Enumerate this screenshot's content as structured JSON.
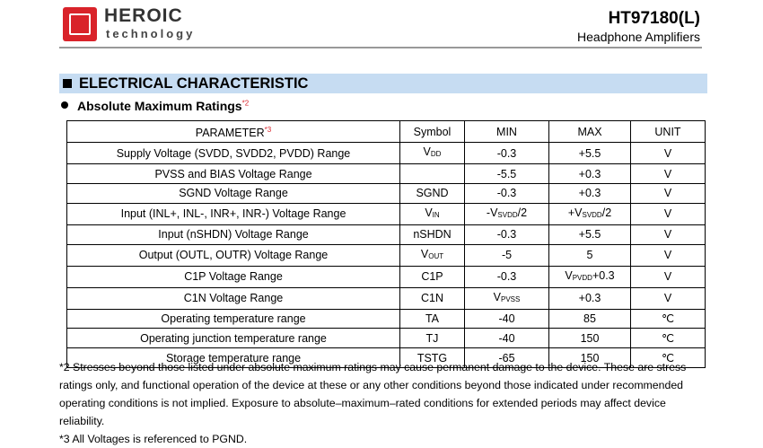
{
  "header": {
    "brand": "HEROIC",
    "brand_sub": "technology",
    "part": "HT97180(L)",
    "product": "Headphone Amplifiers"
  },
  "section": "ELECTRICAL CHARACTERISTIC",
  "subsection": {
    "title": "Absolute Maximum Ratings",
    "note_ref": "*2"
  },
  "table": {
    "header": [
      [
        {
          "t": "PARAMETER"
        },
        {
          "sup": "*3"
        }
      ],
      "Symbol",
      "MIN",
      "MAX",
      "UNIT"
    ],
    "rows": [
      [
        "Supply Voltage (SVDD, SVDD2, PVDD) Range",
        [
          {
            "t": "V"
          },
          {
            "sub": "DD"
          }
        ],
        "-0.3",
        "+5.5",
        "V"
      ],
      [
        "PVSS and BIAS Voltage Range",
        null,
        "-5.5",
        "+0.3",
        "V"
      ],
      [
        "SGND Voltage Range",
        "SGND",
        "-0.3",
        "+0.3",
        "V"
      ],
      [
        "Input (INL+, INL-, INR+, INR-) Voltage Range",
        [
          {
            "t": "V"
          },
          {
            "sub": "IN"
          }
        ],
        [
          {
            "t": "-V"
          },
          {
            "sub": "SVDD"
          },
          {
            "t": "/2"
          }
        ],
        [
          {
            "t": "+V"
          },
          {
            "sub": "SVDD"
          },
          {
            "t": "/2"
          }
        ],
        "V"
      ],
      [
        "Input (nSHDN) Voltage Range",
        "nSHDN",
        "-0.3",
        "+5.5",
        "V"
      ],
      [
        "Output (OUTL, OUTR) Voltage Range",
        [
          {
            "t": "V"
          },
          {
            "sub": "OUT"
          }
        ],
        "-5",
        "5",
        "V"
      ],
      [
        "C1P Voltage Range",
        "C1P",
        "-0.3",
        [
          {
            "t": "V"
          },
          {
            "sub": "PVDD"
          },
          {
            "t": "+0.3"
          }
        ],
        "V"
      ],
      [
        "C1N Voltage Range",
        "C1N",
        [
          {
            "t": "V"
          },
          {
            "sub": "PVSS"
          }
        ],
        "+0.3",
        "V"
      ],
      [
        "Operating temperature range",
        "TA",
        "-40",
        "85",
        "℃"
      ],
      [
        "Operating junction temperature range",
        "TJ",
        "-40",
        "150",
        "℃"
      ],
      [
        "Storage temperature range",
        "TSTG",
        "-65",
        "150",
        "℃"
      ]
    ]
  },
  "notes": [
    "*2 Stresses beyond those listed under absolute maximum ratings may cause permanent damage to the device. These are stress ratings only, and functional operation of the device at these or any other conditions beyond those indicated under recommended operating conditions is not implied. Exposure to absolute–maximum–rated conditions for extended periods may affect device reliability.",
    "*3 All Voltages is referenced to PGND."
  ]
}
